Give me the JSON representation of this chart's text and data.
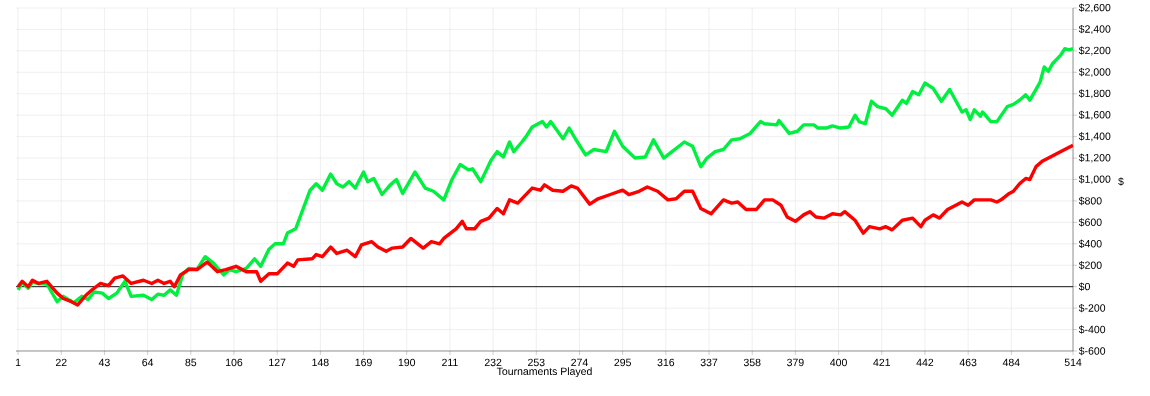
{
  "chart_data": {
    "type": "line",
    "xlabel": "Tournaments Played",
    "ylabel": "$",
    "xlim": [
      0,
      514
    ],
    "ylim": [
      -600,
      2600
    ],
    "xticks": [
      1,
      22,
      43,
      64,
      85,
      106,
      127,
      148,
      169,
      190,
      211,
      232,
      253,
      274,
      295,
      316,
      337,
      358,
      379,
      400,
      421,
      442,
      463,
      484,
      514
    ],
    "yticks": [
      {
        "value": -600,
        "label": "$-600"
      },
      {
        "value": -400,
        "label": "$-400"
      },
      {
        "value": -200,
        "label": "$-200"
      },
      {
        "value": 0,
        "label": "$0"
      },
      {
        "value": 200,
        "label": "$200"
      },
      {
        "value": 400,
        "label": "$400"
      },
      {
        "value": 600,
        "label": "$600"
      },
      {
        "value": 800,
        "label": "$800"
      },
      {
        "value": 1000,
        "label": "$1,000"
      },
      {
        "value": 1200,
        "label": "$1,200"
      },
      {
        "value": 1400,
        "label": "$1,400"
      },
      {
        "value": 1600,
        "label": "$1,600"
      },
      {
        "value": 1800,
        "label": "$1,800"
      },
      {
        "value": 2000,
        "label": "$2,000"
      },
      {
        "value": 2200,
        "label": "$2,200"
      },
      {
        "value": 2400,
        "label": "$2,400"
      },
      {
        "value": 2600,
        "label": "$2,600"
      }
    ],
    "grid": true,
    "line_style": "solid",
    "ref_lines": [
      {
        "axis": "y",
        "value": 0,
        "color": "#000000"
      }
    ],
    "series": [
      {
        "color": "#00f040",
        "x": [
          1,
          3,
          6,
          8,
          11,
          15,
          20,
          23,
          28,
          32,
          35,
          38,
          42,
          45,
          49,
          53,
          56,
          62,
          66,
          69,
          72,
          75,
          78,
          81,
          84,
          88,
          92,
          96,
          101,
          104,
          107,
          112,
          116,
          119,
          123,
          126,
          130,
          132,
          136,
          143,
          146,
          149,
          153,
          156,
          159,
          162,
          165,
          169,
          171,
          174,
          178,
          182,
          185,
          188,
          194,
          199,
          203,
          208,
          212,
          216,
          220,
          222,
          226,
          231,
          234,
          237,
          240,
          242,
          246,
          248,
          251,
          256,
          258,
          260,
          266,
          269,
          272,
          277,
          281,
          287,
          291,
          295,
          301,
          306,
          310,
          315,
          319,
          325,
          329,
          333,
          336,
          340,
          344,
          348,
          352,
          357,
          362,
          364,
          370,
          371,
          376,
          380,
          383,
          388,
          390,
          394,
          397,
          401,
          405,
          408,
          410,
          413,
          416,
          419,
          423,
          426,
          431,
          433,
          436,
          439,
          442,
          446,
          450,
          454,
          460,
          462,
          464,
          466,
          469,
          470,
          474,
          477,
          482,
          485,
          488,
          491,
          493,
          496,
          498,
          500,
          502,
          504,
          508,
          510,
          512,
          514
        ],
        "values": [
          -30,
          40,
          -15,
          40,
          30,
          25,
          -140,
          -90,
          -150,
          -90,
          -120,
          -50,
          -60,
          -110,
          -60,
          50,
          -90,
          -80,
          -120,
          -70,
          -80,
          -30,
          -80,
          110,
          170,
          160,
          280,
          220,
          110,
          160,
          140,
          170,
          260,
          190,
          350,
          400,
          400,
          500,
          540,
          900,
          960,
          900,
          1050,
          960,
          930,
          980,
          920,
          1070,
          980,
          1010,
          860,
          950,
          1000,
          870,
          1070,
          920,
          890,
          810,
          1000,
          1140,
          1090,
          1100,
          980,
          1180,
          1260,
          1210,
          1350,
          1260,
          1350,
          1400,
          1490,
          1540,
          1490,
          1540,
          1380,
          1480,
          1380,
          1230,
          1280,
          1260,
          1450,
          1310,
          1200,
          1210,
          1370,
          1200,
          1260,
          1350,
          1310,
          1120,
          1200,
          1260,
          1280,
          1370,
          1380,
          1430,
          1540,
          1520,
          1510,
          1550,
          1430,
          1450,
          1510,
          1510,
          1480,
          1480,
          1500,
          1480,
          1490,
          1600,
          1540,
          1520,
          1730,
          1680,
          1660,
          1600,
          1740,
          1710,
          1820,
          1790,
          1900,
          1850,
          1730,
          1840,
          1630,
          1650,
          1560,
          1650,
          1590,
          1630,
          1540,
          1540,
          1680,
          1700,
          1740,
          1790,
          1740,
          1840,
          1910,
          2050,
          2010,
          2080,
          2160,
          2220,
          2210,
          2220
        ]
      },
      {
        "color": "#ff0000",
        "x": [
          1,
          3,
          6,
          8,
          11,
          15,
          20,
          23,
          27,
          30,
          34,
          37,
          41,
          45,
          48,
          52,
          56,
          62,
          66,
          69,
          72,
          75,
          77,
          80,
          84,
          88,
          93,
          98,
          102,
          107,
          112,
          117,
          119,
          123,
          127,
          132,
          135,
          137,
          144,
          146,
          149,
          153,
          156,
          161,
          165,
          168,
          173,
          176,
          180,
          183,
          188,
          192,
          198,
          202,
          206,
          208,
          214,
          217,
          219,
          223,
          226,
          230,
          234,
          237,
          240,
          244,
          247,
          251,
          255,
          257,
          261,
          266,
          270,
          273,
          279,
          283,
          289,
          295,
          298,
          303,
          307,
          312,
          317,
          321,
          325,
          329,
          333,
          338,
          344,
          348,
          351,
          355,
          360,
          364,
          368,
          372,
          375,
          379,
          383,
          386,
          389,
          393,
          397,
          401,
          403,
          408,
          412,
          415,
          420,
          423,
          426,
          431,
          436,
          440,
          442,
          446,
          449,
          453,
          457,
          460,
          463,
          466,
          470,
          474,
          477,
          479,
          483,
          485,
          488,
          491,
          493,
          496,
          499,
          503,
          506,
          510,
          514
        ],
        "values": [
          0,
          50,
          0,
          60,
          30,
          50,
          -60,
          -110,
          -140,
          -170,
          -80,
          -30,
          30,
          10,
          80,
          100,
          30,
          60,
          30,
          60,
          30,
          50,
          0,
          110,
          160,
          160,
          230,
          140,
          160,
          190,
          140,
          140,
          50,
          120,
          120,
          220,
          190,
          250,
          260,
          300,
          280,
          370,
          310,
          340,
          280,
          390,
          420,
          370,
          330,
          360,
          370,
          450,
          360,
          420,
          400,
          450,
          540,
          610,
          540,
          540,
          610,
          640,
          730,
          680,
          810,
          780,
          840,
          920,
          900,
          950,
          900,
          890,
          940,
          920,
          770,
          820,
          860,
          900,
          860,
          890,
          930,
          890,
          810,
          820,
          890,
          890,
          730,
          680,
          810,
          780,
          790,
          720,
          720,
          810,
          810,
          760,
          650,
          610,
          670,
          700,
          650,
          640,
          680,
          670,
          700,
          620,
          500,
          560,
          540,
          560,
          530,
          620,
          640,
          560,
          620,
          670,
          640,
          720,
          760,
          790,
          760,
          810,
          810,
          810,
          790,
          810,
          870,
          890,
          960,
          1010,
          1000,
          1120,
          1170,
          1210,
          1240,
          1280,
          1320
        ]
      }
    ]
  }
}
